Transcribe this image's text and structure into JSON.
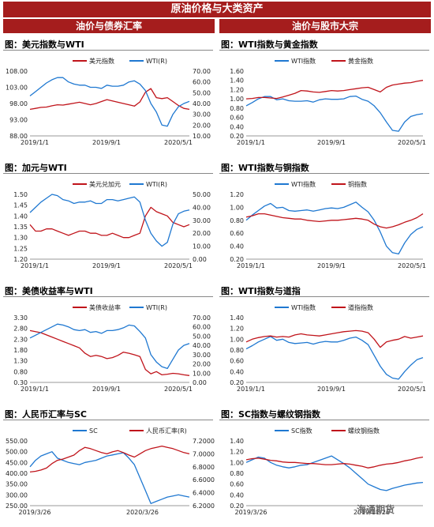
{
  "banner_title": "原油价格与大类资产",
  "columns": {
    "left": "油价与债券汇率",
    "right": "油价与股市大宗"
  },
  "watermark": "海通期货",
  "colors": {
    "red": "#c0141b",
    "blue": "#1f78d1"
  },
  "chart_data": [
    {
      "panel_title": "图：美元指数与WTI",
      "type": "line",
      "x_ticks": [
        "2019/1/1",
        "2019/9/1",
        "2020/5/1"
      ],
      "left_axis": {
        "ticks": [
          "108.00",
          "103.00",
          "98.00",
          "93.00",
          "88.00"
        ],
        "ylim": [
          88,
          108
        ]
      },
      "right_axis": {
        "ticks": [
          "70.00",
          "60.00",
          "50.00",
          "40.00",
          "30.00",
          "20.00",
          "10.00"
        ],
        "ylim": [
          10,
          70
        ]
      },
      "series": [
        {
          "name": "美元指数",
          "color": "red",
          "axis": "left",
          "values": [
            96.2,
            96.5,
            96.8,
            96.9,
            97.3,
            97.6,
            97.5,
            97.8,
            98.1,
            98.4,
            98.0,
            97.6,
            98.0,
            98.6,
            99.2,
            98.8,
            98.4,
            98.0,
            97.6,
            97.2,
            98.5,
            101.5,
            102.6,
            99.8,
            99.5,
            99.8,
            98.6,
            97.4,
            96.5,
            96.2
          ]
        },
        {
          "name": "WTI(R)",
          "color": "blue",
          "axis": "right",
          "values": [
            47,
            51,
            55,
            59,
            62,
            64,
            64,
            60,
            58,
            57,
            57,
            55,
            55,
            54,
            57,
            56,
            56,
            57,
            60,
            61,
            58,
            52,
            40,
            32,
            20,
            19,
            30,
            37,
            40,
            42
          ]
        }
      ]
    },
    {
      "panel_title": "图：WTI指数与黄金指数",
      "type": "line",
      "x_ticks": [
        "2019/1/1",
        "2019/9/1",
        "2020/5/1"
      ],
      "left_axis": {
        "ticks": [
          "1.60",
          "1.40",
          "1.20",
          "1.00",
          "0.80",
          "0.60",
          "0.40",
          "0.20"
        ],
        "ylim": [
          0.2,
          1.6
        ]
      },
      "series": [
        {
          "name": "WTI指数",
          "color": "blue",
          "axis": "left",
          "values": [
            0.85,
            0.92,
            1.0,
            1.05,
            1.05,
            0.98,
            1.0,
            0.96,
            0.95,
            0.95,
            0.96,
            0.93,
            0.98,
            1.0,
            0.99,
            0.99,
            1.0,
            1.05,
            1.06,
            0.99,
            0.95,
            0.85,
            0.7,
            0.5,
            0.32,
            0.3,
            0.5,
            0.62,
            0.66,
            0.68
          ]
        },
        {
          "name": "黄金指数",
          "color": "red",
          "axis": "left",
          "values": [
            1.0,
            1.01,
            1.03,
            1.03,
            1.02,
            1.01,
            1.04,
            1.08,
            1.12,
            1.18,
            1.17,
            1.15,
            1.14,
            1.16,
            1.18,
            1.17,
            1.18,
            1.2,
            1.22,
            1.24,
            1.25,
            1.2,
            1.15,
            1.25,
            1.3,
            1.32,
            1.34,
            1.35,
            1.38,
            1.4
          ]
        }
      ]
    },
    {
      "panel_title": "图：加元与WTI",
      "type": "line",
      "x_ticks": [
        "2019/1/1",
        "2019/9/1",
        "2020/5/1"
      ],
      "left_axis": {
        "ticks": [
          "1.50",
          "1.45",
          "1.40",
          "1.35",
          "1.30",
          "1.25",
          "1.20"
        ],
        "ylim": [
          1.2,
          1.5
        ]
      },
      "right_axis": {
        "ticks": [
          "50.00",
          "40.00",
          "30.00",
          "20.00",
          "10.00",
          "0.00"
        ],
        "ylim": [
          0,
          50
        ]
      },
      "series": [
        {
          "name": "美元兑加元",
          "color": "red",
          "axis": "left",
          "values": [
            1.36,
            1.33,
            1.33,
            1.34,
            1.34,
            1.33,
            1.32,
            1.31,
            1.32,
            1.33,
            1.33,
            1.32,
            1.32,
            1.31,
            1.31,
            1.32,
            1.31,
            1.3,
            1.3,
            1.31,
            1.32,
            1.4,
            1.44,
            1.42,
            1.41,
            1.4,
            1.37,
            1.36,
            1.35,
            1.36
          ]
        },
        {
          "name": "WTI(R)",
          "color": "blue",
          "axis": "right",
          "values": [
            36,
            40,
            44,
            47,
            50,
            49,
            46,
            45,
            43,
            44,
            44,
            45,
            43,
            43,
            46,
            46,
            45,
            46,
            47,
            48,
            44,
            30,
            20,
            14,
            10,
            13,
            27,
            35,
            37,
            38
          ]
        }
      ]
    },
    {
      "panel_title": "图：WTI指数与铜指数",
      "type": "line",
      "x_ticks": [
        "2019/1/1",
        "2019/9/1",
        "2020/5/1"
      ],
      "left_axis": {
        "ticks": [
          "1.20",
          "1.00",
          "0.80",
          "0.60",
          "0.40",
          "0.20"
        ],
        "ylim": [
          0.2,
          1.2
        ]
      },
      "series": [
        {
          "name": "WTI指数",
          "color": "blue",
          "axis": "left",
          "values": [
            0.8,
            0.88,
            0.95,
            1.02,
            1.06,
            0.99,
            1.0,
            0.95,
            0.94,
            0.95,
            0.96,
            0.94,
            0.96,
            0.98,
            0.99,
            0.98,
            1.0,
            1.04,
            1.08,
            1.0,
            0.93,
            0.8,
            0.62,
            0.4,
            0.3,
            0.28,
            0.45,
            0.58,
            0.66,
            0.7
          ]
        },
        {
          "name": "铜指数",
          "color": "red",
          "axis": "left",
          "values": [
            0.85,
            0.87,
            0.9,
            0.9,
            0.88,
            0.86,
            0.84,
            0.83,
            0.82,
            0.82,
            0.8,
            0.79,
            0.78,
            0.79,
            0.8,
            0.8,
            0.81,
            0.82,
            0.83,
            0.82,
            0.8,
            0.74,
            0.7,
            0.68,
            0.7,
            0.73,
            0.77,
            0.8,
            0.84,
            0.9
          ]
        }
      ]
    },
    {
      "panel_title": "图：美债收益率与WTI",
      "type": "line",
      "x_ticks": [
        "2019/1/1",
        "2019/9/1",
        "2020/5/1"
      ],
      "left_axis": {
        "ticks": [
          "3.30",
          "2.80",
          "2.30",
          "1.80",
          "1.30",
          "0.80",
          "0.30"
        ],
        "ylim": [
          0.3,
          3.3
        ]
      },
      "right_axis": {
        "ticks": [
          "70.00",
          "60.00",
          "50.00",
          "40.00",
          "30.00",
          "20.00",
          "10.00",
          "0.00"
        ],
        "ylim": [
          0,
          70
        ]
      },
      "series": [
        {
          "name": "美债收益率",
          "color": "red",
          "axis": "left",
          "values": [
            2.7,
            2.65,
            2.6,
            2.5,
            2.4,
            2.3,
            2.2,
            2.1,
            2.0,
            1.9,
            1.65,
            1.5,
            1.55,
            1.5,
            1.4,
            1.45,
            1.55,
            1.7,
            1.65,
            1.58,
            1.5,
            0.9,
            0.7,
            0.8,
            0.65,
            0.68,
            0.72,
            0.7,
            0.65,
            0.62
          ]
        },
        {
          "name": "WTI(R)",
          "color": "blue",
          "axis": "right",
          "values": [
            48,
            51,
            54,
            57,
            60,
            63,
            62,
            60,
            57,
            56,
            57,
            54,
            55,
            53,
            56,
            56,
            57,
            59,
            62,
            61,
            55,
            48,
            30,
            22,
            17,
            15,
            25,
            35,
            40,
            42
          ]
        }
      ]
    },
    {
      "panel_title": "图：WTI指数与道指",
      "type": "line",
      "x_ticks": [
        "2019/1/1",
        "2019/9/1",
        "2020/5/1"
      ],
      "left_axis": {
        "ticks": [
          "1.40",
          "1.20",
          "1.00",
          "0.80",
          "0.60",
          "0.40",
          "0.20"
        ],
        "ylim": [
          0.2,
          1.4
        ]
      },
      "series": [
        {
          "name": "WTI指数",
          "color": "blue",
          "axis": "left",
          "values": [
            0.82,
            0.88,
            0.95,
            1.0,
            1.05,
            0.98,
            1.0,
            0.94,
            0.92,
            0.93,
            0.94,
            0.91,
            0.94,
            0.96,
            0.95,
            0.95,
            0.98,
            1.02,
            1.04,
            0.98,
            0.9,
            0.7,
            0.5,
            0.35,
            0.28,
            0.26,
            0.4,
            0.52,
            0.62,
            0.66
          ]
        },
        {
          "name": "道指指数",
          "color": "red",
          "axis": "left",
          "values": [
            0.95,
            1.0,
            1.03,
            1.05,
            1.06,
            1.04,
            1.05,
            1.04,
            1.08,
            1.1,
            1.08,
            1.07,
            1.06,
            1.08,
            1.1,
            1.12,
            1.14,
            1.15,
            1.16,
            1.15,
            1.12,
            1.0,
            0.85,
            0.95,
            0.98,
            1.0,
            1.05,
            1.02,
            1.04,
            1.06
          ]
        }
      ]
    },
    {
      "panel_title": "图：人民币汇率与SC",
      "type": "line",
      "x_ticks": [
        "2019/3/26",
        "2020/3/26"
      ],
      "left_axis": {
        "ticks": [
          "550.00",
          "500.00",
          "450.00",
          "400.00",
          "350.00",
          "300.00",
          "250.00"
        ],
        "ylim": [
          250,
          550
        ]
      },
      "right_axis": {
        "ticks": [
          "7.2000",
          "7.0000",
          "6.8000",
          "6.6000",
          "6.4000",
          "6.2000"
        ],
        "ylim": [
          6.2,
          7.2
        ]
      },
      "series": [
        {
          "name": "SC",
          "color": "blue",
          "axis": "left",
          "values": [
            430,
            460,
            480,
            490,
            500,
            470,
            460,
            450,
            445,
            440,
            450,
            455,
            460,
            470,
            480,
            485,
            490,
            495,
            470,
            440,
            380,
            320,
            260,
            270,
            280,
            290,
            295,
            300,
            295,
            290
          ]
        },
        {
          "name": "人民币汇率(R)",
          "color": "red",
          "axis": "right",
          "values": [
            6.72,
            6.73,
            6.75,
            6.78,
            6.85,
            6.9,
            6.92,
            6.95,
            6.98,
            7.05,
            7.1,
            7.08,
            7.05,
            7.02,
            7.0,
            7.03,
            7.05,
            7.02,
            6.98,
            6.95,
            7.0,
            7.05,
            7.08,
            7.1,
            7.12,
            7.1,
            7.08,
            7.05,
            7.02,
            7.0
          ]
        }
      ]
    },
    {
      "panel_title": "图：SC指数与螺纹钢指数",
      "type": "line",
      "x_ticks": [
        "2019/3/26",
        "2019/11/26"
      ],
      "left_axis": {
        "ticks": [
          "1.40",
          "1.20",
          "1.00",
          "0.80",
          "0.60",
          "0.40",
          "0.20"
        ],
        "ylim": [
          0.2,
          1.4
        ]
      },
      "series": [
        {
          "name": "SC指数",
          "color": "blue",
          "axis": "left",
          "values": [
            1.0,
            1.05,
            1.1,
            1.08,
            1.0,
            0.95,
            0.92,
            0.9,
            0.92,
            0.95,
            0.96,
            1.0,
            1.04,
            1.08,
            1.12,
            1.05,
            0.98,
            0.9,
            0.8,
            0.7,
            0.6,
            0.55,
            0.5,
            0.48,
            0.52,
            0.55,
            0.58,
            0.6,
            0.62,
            0.63
          ]
        },
        {
          "name": "螺纹钢指数",
          "color": "red",
          "axis": "left",
          "values": [
            1.05,
            1.07,
            1.08,
            1.06,
            1.04,
            1.03,
            1.01,
            1.0,
            1.0,
            0.99,
            0.98,
            0.98,
            0.97,
            0.96,
            0.96,
            0.97,
            0.98,
            0.97,
            0.95,
            0.93,
            0.9,
            0.92,
            0.95,
            0.97,
            0.98,
            1.0,
            1.03,
            1.05,
            1.08,
            1.1
          ]
        }
      ]
    }
  ]
}
